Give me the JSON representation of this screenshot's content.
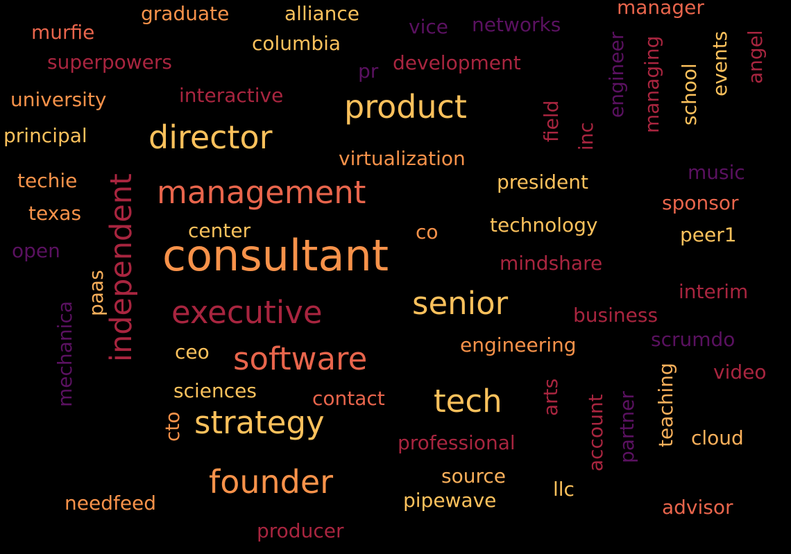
{
  "palette": {
    "background": "#000000",
    "gold": "#fcc15c",
    "light_orange": "#fbb05b",
    "orange": "#f8924a",
    "coral": "#e8654c",
    "red": "#c93a48",
    "crimson": "#a8253f",
    "plum": "#7c1d4f",
    "purple": "#5a1160"
  },
  "words": [
    {
      "text": "consultant",
      "color": "#f8924a"
    },
    {
      "text": "product",
      "color": "#fcc15c"
    },
    {
      "text": "director",
      "color": "#fcc15c"
    },
    {
      "text": "management",
      "color": "#e8654c"
    },
    {
      "text": "independent",
      "color": "#a8253f"
    },
    {
      "text": "executive",
      "color": "#a8253f"
    },
    {
      "text": "senior",
      "color": "#fcc15c"
    },
    {
      "text": "software",
      "color": "#e8654c"
    },
    {
      "text": "tech",
      "color": "#fcc15c"
    },
    {
      "text": "strategy",
      "color": "#fcc15c"
    },
    {
      "text": "founder",
      "color": "#f8924a"
    },
    {
      "text": "graduate",
      "color": "#f8924a"
    },
    {
      "text": "alliance",
      "color": "#fcc15c"
    },
    {
      "text": "manager",
      "color": "#e8654c"
    },
    {
      "text": "murfie",
      "color": "#e8654c"
    },
    {
      "text": "columbia",
      "color": "#fcc15c"
    },
    {
      "text": "vice",
      "color": "#5a1160"
    },
    {
      "text": "networks",
      "color": "#5a1160"
    },
    {
      "text": "superpowers",
      "color": "#a8253f"
    },
    {
      "text": "pr",
      "color": "#5a1160"
    },
    {
      "text": "development",
      "color": "#a8253f"
    },
    {
      "text": "university",
      "color": "#f8924a"
    },
    {
      "text": "interactive",
      "color": "#a8253f"
    },
    {
      "text": "principal",
      "color": "#fcc15c"
    },
    {
      "text": "virtualization",
      "color": "#f8924a"
    },
    {
      "text": "techie",
      "color": "#f8924a"
    },
    {
      "text": "president",
      "color": "#fcc15c"
    },
    {
      "text": "texas",
      "color": "#f8924a"
    },
    {
      "text": "center",
      "color": "#fcc15c"
    },
    {
      "text": "co",
      "color": "#f8924a"
    },
    {
      "text": "technology",
      "color": "#fcc15c"
    },
    {
      "text": "open",
      "color": "#5a1160"
    },
    {
      "text": "mindshare",
      "color": "#a8253f"
    },
    {
      "text": "music",
      "color": "#5a1160"
    },
    {
      "text": "sponsor",
      "color": "#e8654c"
    },
    {
      "text": "peer1",
      "color": "#fcc15c"
    },
    {
      "text": "interim",
      "color": "#a8253f"
    },
    {
      "text": "business",
      "color": "#a8253f"
    },
    {
      "text": "ceo",
      "color": "#fcc15c"
    },
    {
      "text": "engineering",
      "color": "#f8924a"
    },
    {
      "text": "scrumdo",
      "color": "#5a1160"
    },
    {
      "text": "sciences",
      "color": "#fcc15c"
    },
    {
      "text": "contact",
      "color": "#e8654c"
    },
    {
      "text": "video",
      "color": "#a8253f"
    },
    {
      "text": "professional",
      "color": "#a8253f"
    },
    {
      "text": "cloud",
      "color": "#fbb05b"
    },
    {
      "text": "source",
      "color": "#fbb05b"
    },
    {
      "text": "llc",
      "color": "#fcc15c"
    },
    {
      "text": "needfeed",
      "color": "#f8924a"
    },
    {
      "text": "pipewave",
      "color": "#fcc15c"
    },
    {
      "text": "advisor",
      "color": "#e8654c"
    },
    {
      "text": "producer",
      "color": "#a8253f"
    },
    {
      "text": "engineer",
      "color": "#5a1160"
    },
    {
      "text": "managing",
      "color": "#a8253f"
    },
    {
      "text": "school",
      "color": "#fcc15c"
    },
    {
      "text": "events",
      "color": "#fcc15c"
    },
    {
      "text": "angel",
      "color": "#a8253f"
    },
    {
      "text": "field",
      "color": "#a8253f"
    },
    {
      "text": "inc",
      "color": "#a8253f"
    },
    {
      "text": "paas",
      "color": "#fbb05b"
    },
    {
      "text": "mechanica",
      "color": "#5a1160"
    },
    {
      "text": "cto",
      "color": "#f8924a"
    },
    {
      "text": "arts",
      "color": "#a8253f"
    },
    {
      "text": "account",
      "color": "#a8253f"
    },
    {
      "text": "partner",
      "color": "#5a1160"
    },
    {
      "text": "teaching",
      "color": "#fbb05b"
    }
  ]
}
